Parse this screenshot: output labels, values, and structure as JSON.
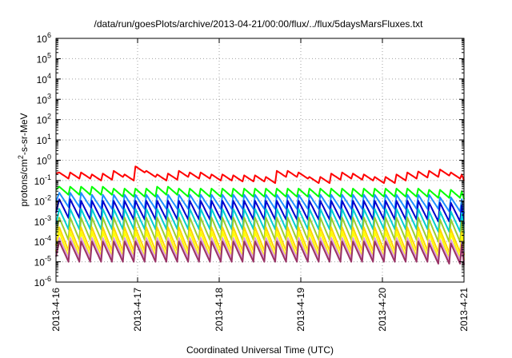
{
  "chart_data": {
    "type": "line",
    "title": "/data/run/goesPlots/archive/2013-04-21/00:00/flux/../flux/5daysMarsFluxes.txt",
    "xlabel": "Coordinated Universal Time (UTC)",
    "ylabel": "protons/cm2-s-sr-MeV",
    "ylabel_parts": {
      "pre": "protons/cm",
      "sup": "2",
      "post": "-s-sr-MeV"
    },
    "yscale": "log",
    "ylim_exp": [
      -6,
      6
    ],
    "ytick_exponents": [
      "-6",
      "-5",
      "-4",
      "-3",
      "-2",
      "-1",
      "0",
      "1",
      "2",
      "3",
      "4",
      "5",
      "6"
    ],
    "ytick_base": "10",
    "xlim": [
      "2013-4-16",
      "2013-4-21"
    ],
    "xticks": [
      "2013-4-16",
      "2013-4-17",
      "2013-4-18",
      "2013-4-19",
      "2013-4-20",
      "2013-4-21"
    ],
    "grid": true,
    "legend": "none",
    "sawtooth_period_days": 0.1333,
    "series": [
      {
        "color": "#ff0000",
        "peaks": [
          0.25,
          0.25,
          0.25,
          0.2,
          0.22,
          0.3,
          0.2,
          0.5,
          0.3,
          0.2,
          0.22,
          0.3,
          0.25,
          0.25,
          0.2,
          0.2,
          0.18,
          0.18,
          0.18,
          0.15,
          0.3,
          0.3,
          0.25,
          0.15,
          0.15,
          0.22,
          0.25,
          0.22,
          0.2,
          0.15,
          0.15,
          0.2,
          0.25,
          0.28,
          0.3,
          0.35,
          0.25,
          0.2
        ],
        "ratio": 0.5
      },
      {
        "color": "#00ff00",
        "peaks": [
          0.05,
          0.05,
          0.05,
          0.05,
          0.05,
          0.04,
          0.04,
          0.04,
          0.04,
          0.05,
          0.05,
          0.04,
          0.04,
          0.04,
          0.04,
          0.04,
          0.04,
          0.04,
          0.04,
          0.04,
          0.04,
          0.04,
          0.04,
          0.04,
          0.04,
          0.04,
          0.04,
          0.04,
          0.04,
          0.04,
          0.04,
          0.04,
          0.04,
          0.04,
          0.035,
          0.035,
          0.035,
          0.03
        ],
        "ratio": 0.4
      },
      {
        "color": "#1e90ff",
        "peaks": [
          0.025,
          0.025,
          0.025,
          0.02,
          0.02,
          0.02,
          0.02,
          0.02,
          0.02,
          0.02,
          0.02,
          0.02,
          0.02,
          0.02,
          0.02,
          0.02,
          0.02,
          0.02,
          0.02,
          0.02,
          0.02,
          0.02,
          0.02,
          0.02,
          0.02,
          0.02,
          0.02,
          0.02,
          0.02,
          0.02,
          0.02,
          0.02,
          0.02,
          0.02,
          0.02,
          0.015,
          0.015,
          0.012
        ],
        "ratio": 0.2
      },
      {
        "color": "#0000cd",
        "peaks": [
          0.012,
          0.012,
          0.01,
          0.01,
          0.01,
          0.01,
          0.01,
          0.01,
          0.01,
          0.01,
          0.01,
          0.01,
          0.01,
          0.01,
          0.01,
          0.01,
          0.01,
          0.01,
          0.01,
          0.01,
          0.01,
          0.01,
          0.01,
          0.01,
          0.01,
          0.01,
          0.01,
          0.01,
          0.01,
          0.01,
          0.01,
          0.01,
          0.01,
          0.01,
          0.008,
          0.008,
          0.008,
          0.006
        ],
        "ratio": 0.12
      },
      {
        "color": "#00ced1",
        "peaks": [
          0.004,
          0.004,
          0.004,
          0.004,
          0.004,
          0.004,
          0.004,
          0.004,
          0.004,
          0.004,
          0.004,
          0.004,
          0.004,
          0.004,
          0.004,
          0.004,
          0.004,
          0.004,
          0.004,
          0.004,
          0.004,
          0.004,
          0.004,
          0.004,
          0.004,
          0.004,
          0.004,
          0.004,
          0.004,
          0.004,
          0.004,
          0.004,
          0.004,
          0.004,
          0.003,
          0.003,
          0.003,
          0.0025
        ],
        "ratio": 0.1
      },
      {
        "color": "#9acd32",
        "peaks": [
          0.0015,
          0.0015,
          0.0015,
          0.0015,
          0.0015,
          0.0015,
          0.0015,
          0.0015,
          0.0015,
          0.0015,
          0.0015,
          0.0015,
          0.0015,
          0.0015,
          0.0015,
          0.0015,
          0.0015,
          0.0015,
          0.0015,
          0.0015,
          0.0015,
          0.0015,
          0.0015,
          0.0015,
          0.0015,
          0.0015,
          0.0015,
          0.0015,
          0.0015,
          0.0015,
          0.0015,
          0.0015,
          0.0015,
          0.0015,
          0.0012,
          0.0012,
          0.0012,
          0.001
        ],
        "ratio": 0.08
      },
      {
        "color": "#ffd700",
        "peaks": [
          0.0005,
          0.0005,
          0.0005,
          0.0005,
          0.0005,
          0.0005,
          0.0005,
          0.0005,
          0.0005,
          0.0005,
          0.0005,
          0.0005,
          0.0005,
          0.0005,
          0.0005,
          0.0005,
          0.0005,
          0.0005,
          0.0005,
          0.0005,
          0.0005,
          0.0005,
          0.0005,
          0.0005,
          0.0005,
          0.0005,
          0.0005,
          0.0005,
          0.0005,
          0.0005,
          0.0005,
          0.0005,
          0.0005,
          0.0005,
          0.0004,
          0.0004,
          0.0004,
          0.0003
        ],
        "ratio": 0.07
      },
      {
        "color": "#ffff00",
        "peaks": [
          0.0003,
          0.0003,
          0.0003,
          0.0003,
          0.0003,
          0.0003,
          0.0003,
          0.0003,
          0.0003,
          0.0003,
          0.0003,
          0.0003,
          0.0003,
          0.0003,
          0.0003,
          0.0003,
          0.0003,
          0.0003,
          0.0003,
          0.0003,
          0.0003,
          0.0003,
          0.0003,
          0.0003,
          0.0003,
          0.0003,
          0.0003,
          0.0003,
          0.0003,
          0.0003,
          0.0003,
          0.0003,
          0.0003,
          0.0003,
          0.00025,
          0.00025,
          0.00025,
          0.0002
        ],
        "ratio": 0.06
      },
      {
        "color": "#dda0dd",
        "peaks": [
          0.00015,
          0.00015,
          0.00015,
          0.00015,
          0.00015,
          0.00015,
          0.00015,
          0.00015,
          0.00015,
          0.00015,
          0.00015,
          0.00015,
          0.00015,
          0.00015,
          0.00015,
          0.00015,
          0.00015,
          0.00015,
          0.00015,
          0.00015,
          0.00015,
          0.00015,
          0.00015,
          0.00015,
          0.00015,
          0.00015,
          0.00015,
          0.00015,
          0.00015,
          0.00015,
          0.00015,
          0.00015,
          0.00015,
          0.00015,
          0.00012,
          0.00012,
          0.00012,
          0.0001
        ],
        "ratio": 0.1
      },
      {
        "color": "#993366",
        "peaks": [
          0.0001,
          0.0001,
          0.0001,
          0.0001,
          0.0001,
          0.0001,
          0.0001,
          0.0001,
          0.0001,
          0.0001,
          0.0001,
          0.0001,
          0.0001,
          0.0001,
          0.0001,
          0.0001,
          0.0001,
          0.0001,
          0.0001,
          0.0001,
          0.0001,
          0.0001,
          0.0001,
          0.0001,
          0.0001,
          0.0001,
          0.0001,
          0.0001,
          0.0001,
          0.0001,
          0.0001,
          0.0001,
          0.0001,
          0.0001,
          8e-05,
          8e-05,
          8e-05,
          7e-05
        ],
        "ratio": 0.1
      }
    ]
  }
}
